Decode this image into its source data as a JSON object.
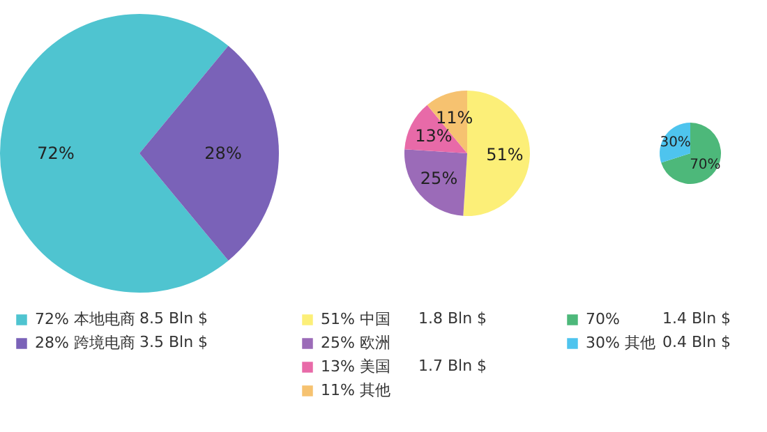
{
  "chart_data": [
    {
      "type": "pie",
      "categories": [
        "本地电商",
        "跨境电商"
      ],
      "values": [
        72,
        28
      ],
      "value_labels": [
        "72%",
        "28%"
      ],
      "colors": [
        "#4fc4d0",
        "#7a62b8"
      ],
      "annotations": [
        "8.5 Bln $",
        "3.5 Bln $"
      ],
      "legend": "bottom"
    },
    {
      "type": "pie",
      "categories": [
        "中国",
        "欧洲",
        "美国",
        "其他"
      ],
      "values": [
        51,
        25,
        13,
        11
      ],
      "value_labels": [
        "51%",
        "25%",
        "13%",
        "11%"
      ],
      "colors": [
        "#fcef78",
        "#9b6bb8",
        "#e86aa8",
        "#f6c270"
      ],
      "annotations": [
        "1.8 Bln $",
        "1.7 Bln $"
      ],
      "legend": "bottom"
    },
    {
      "type": "pie",
      "categories": [
        null,
        "其他"
      ],
      "values": [
        70,
        30
      ],
      "value_labels": [
        "70%",
        "30%"
      ],
      "colors": [
        "#4db87a",
        "#4ec4ee"
      ],
      "annotations": [
        "1.4 Bln $",
        "0.4 Bln $"
      ],
      "legend": "bottom"
    }
  ]
}
